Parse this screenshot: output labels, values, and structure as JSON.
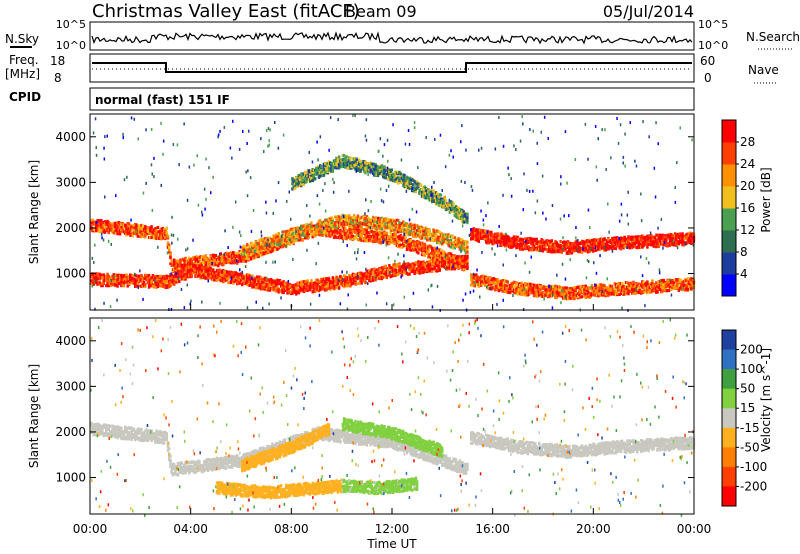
{
  "header": {
    "title": "Christmas Valley East (fitACF)",
    "beam": "Beam 09",
    "date": "05/Jul/2014"
  },
  "status_panels": {
    "nsky_label": "N.Sky",
    "nsky_ticks": [
      "10^5",
      "10^0"
    ],
    "nsearch_label": "N.Search",
    "nsearch_ticks": [
      "10^5",
      "10^0"
    ],
    "freq_label": "Freq.",
    "freq_unit": "[MHz]",
    "freq_ticks": [
      "18",
      "8"
    ],
    "nave_label": "Nave",
    "nave_ticks": [
      "60",
      "0"
    ],
    "cpid_label": "CPID",
    "cpid_value": "normal (fast) 151 IF"
  },
  "colors": {
    "power_scale": [
      "#0000ff",
      "#1e3c9e",
      "#2e6e50",
      "#4aa050",
      "#f0c020",
      "#ff9000",
      "#ff4000",
      "#ff0000"
    ],
    "velocity_scale": [
      "#2040a0",
      "#3070c0",
      "#40a040",
      "#80d040",
      "#c8c8c0",
      "#ffb020",
      "#ff8000",
      "#ff4000",
      "#ff0000"
    ]
  },
  "chart_data": [
    {
      "type": "heatmap",
      "name": "power",
      "ylabel": "Slant Range [km]",
      "yticks": [
        "1000",
        "2000",
        "3000",
        "4000"
      ],
      "ylim": [
        200,
        4500
      ],
      "colorbar_label": "Power [dB]",
      "colorbar_ticks": [
        "4",
        "8",
        "12",
        "16",
        "20",
        "24",
        "28"
      ],
      "colorbar_range": [
        0,
        30
      ],
      "bands": [
        {
          "t": [
            0,
            3,
            3.2,
            6,
            9,
            12,
            15
          ],
          "r": [
            2100,
            1900,
            1200,
            1400,
            2000,
            1800,
            1200
          ],
          "value": 24
        },
        {
          "t": [
            0,
            3,
            4,
            6,
            8,
            10,
            12,
            15
          ],
          "r": [
            900,
            850,
            1100,
            900,
            700,
            850,
            1100,
            1300
          ],
          "value": 26
        },
        {
          "t": [
            15.1,
            17,
            19,
            21,
            24
          ],
          "r": [
            1900,
            1700,
            1600,
            1700,
            1800
          ],
          "value": 28
        },
        {
          "t": [
            15.1,
            17,
            19,
            21,
            24
          ],
          "r": [
            900,
            700,
            600,
            700,
            800
          ],
          "value": 24
        },
        {
          "t": [
            6,
            8,
            10,
            12,
            14,
            15
          ],
          "r": [
            1500,
            1900,
            2200,
            2100,
            1800,
            1600
          ],
          "value": 20
        },
        {
          "t": [
            8,
            10,
            12,
            14,
            15
          ],
          "r": [
            3000,
            3500,
            3200,
            2600,
            2200
          ],
          "value": 12
        }
      ]
    },
    {
      "type": "heatmap",
      "name": "velocity",
      "ylabel": "Slant Range [km]",
      "yticks": [
        "1000",
        "2000",
        "3000",
        "4000"
      ],
      "ylim": [
        200,
        4500
      ],
      "xlabel": "Time UT",
      "xticks": [
        "00:00",
        "04:00",
        "08:00",
        "12:00",
        "16:00",
        "20:00",
        "00:00"
      ],
      "xlim": [
        0,
        24
      ],
      "colorbar_label": "Velocity [m s^-1]",
      "colorbar_ticks": [
        "200",
        "100",
        "50",
        "15",
        "-15",
        "-50",
        "-100",
        "-200"
      ],
      "colorbar_range": [
        -250,
        250
      ],
      "bands": [
        {
          "t": [
            0,
            3,
            3.2,
            6,
            9,
            12,
            15
          ],
          "r": [
            2100,
            1900,
            1200,
            1400,
            2000,
            1800,
            1200
          ],
          "value": 0
        },
        {
          "t": [
            15.1,
            17,
            19,
            21,
            24
          ],
          "r": [
            1900,
            1700,
            1600,
            1700,
            1800
          ],
          "value": 0
        },
        {
          "t": [
            5,
            7,
            9,
            10
          ],
          "r": [
            800,
            700,
            800,
            850
          ],
          "value": -60
        },
        {
          "t": [
            10,
            11.5,
            13
          ],
          "r": [
            850,
            800,
            900
          ],
          "value": 40
        },
        {
          "t": [
            6,
            8,
            9.5
          ],
          "r": [
            1300,
            1700,
            2100
          ],
          "value": -50
        },
        {
          "t": [
            10,
            12,
            14
          ],
          "r": [
            2200,
            2000,
            1600
          ],
          "value": 50
        }
      ]
    }
  ]
}
